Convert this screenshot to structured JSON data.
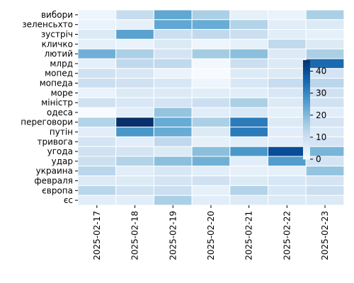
{
  "chart_data": {
    "type": "heatmap",
    "title": "",
    "xlabel": "",
    "ylabel": "",
    "x_categories": [
      "2025-02-17",
      "2025-02-18",
      "2025-02-19",
      "2025-02-20",
      "2025-02-21",
      "2025-02-22",
      "2025-02-23"
    ],
    "y_categories": [
      "вибори",
      "зеленсьхто",
      "зустріч",
      "кличко",
      "лютий",
      "млрд",
      "мопед",
      "мопеда",
      "море",
      "міністр",
      "одеса",
      "переговори",
      "путін",
      "тривога",
      "угода",
      "удар",
      "украина",
      "февраля",
      "європа",
      "єс"
    ],
    "values": [
      [
        2,
        11,
        24,
        15,
        4,
        3,
        15
      ],
      [
        3,
        4,
        24,
        23,
        14,
        5,
        6
      ],
      [
        6,
        25,
        10,
        12,
        10,
        5,
        4
      ],
      [
        4,
        3,
        6,
        2,
        4,
        12,
        6
      ],
      [
        22,
        15,
        8,
        16,
        19,
        6,
        15
      ],
      [
        4,
        12,
        12,
        1,
        10,
        6,
        35
      ],
      [
        9,
        7,
        3,
        0,
        6,
        6,
        8
      ],
      [
        10,
        9,
        7,
        2,
        7,
        11,
        13
      ],
      [
        3,
        6,
        6,
        5,
        5,
        7,
        9
      ],
      [
        9,
        7,
        8,
        10,
        15,
        6,
        9
      ],
      [
        0,
        5,
        18,
        5,
        7,
        4,
        5
      ],
      [
        14,
        45,
        23,
        15,
        32,
        6,
        8
      ],
      [
        5,
        27,
        23,
        6,
        32,
        5,
        6
      ],
      [
        8,
        5,
        12,
        4,
        5,
        5,
        8
      ],
      [
        9,
        8,
        6,
        19,
        27,
        40,
        21
      ],
      [
        10,
        14,
        19,
        22,
        5,
        26,
        8
      ],
      [
        13,
        5,
        7,
        5,
        4,
        4,
        18
      ],
      [
        6,
        6,
        8,
        9,
        6,
        7,
        8
      ],
      [
        13,
        9,
        10,
        4,
        14,
        7,
        10
      ],
      [
        5,
        5,
        15,
        5,
        6,
        6,
        6
      ]
    ],
    "vmin": 0,
    "vmax": 45,
    "colorbar_ticks": [
      0,
      10,
      20,
      30,
      40
    ],
    "colormap": [
      "#f7fbff",
      "#deebf7",
      "#c6dbef",
      "#9ecae1",
      "#6baed6",
      "#4292c6",
      "#2171b5",
      "#08519c",
      "#08306b"
    ],
    "grid_lines": "white"
  }
}
